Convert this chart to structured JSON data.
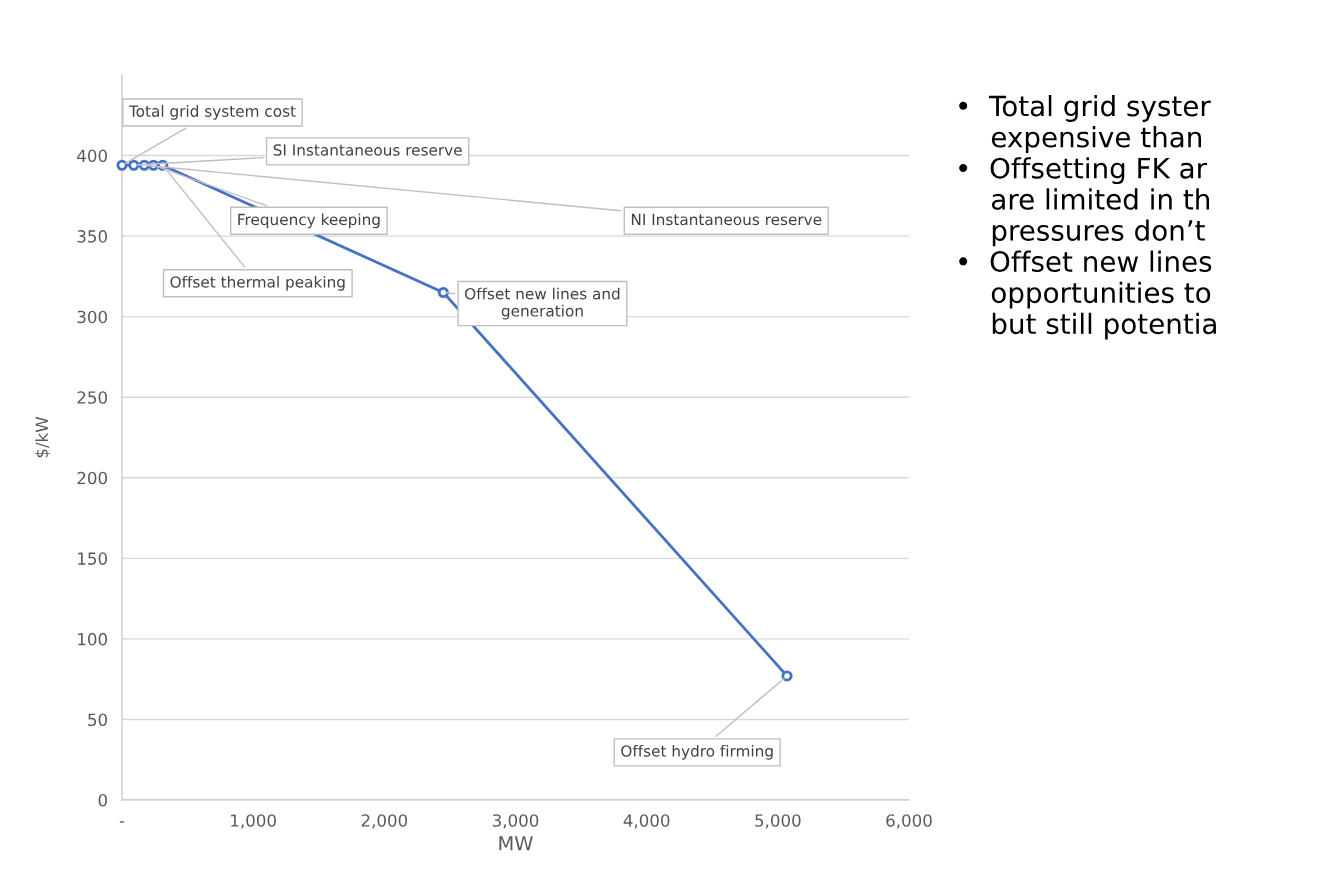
{
  "chart_data": {
    "type": "line",
    "xlabel": "MW",
    "ylabel": "$/kW",
    "x": [
      0,
      90,
      170,
      240,
      310,
      2450,
      5070
    ],
    "series": [
      {
        "color": "#4472c4",
        "values": [
          394,
          394,
          394,
          394,
          394,
          315,
          77
        ]
      }
    ],
    "marker": "circle",
    "line_style": "solid",
    "grid": "y",
    "xlim": [
      0,
      6000
    ],
    "ylim": [
      0,
      450
    ],
    "xticks": [
      {
        "value": 0,
        "label": "-"
      },
      {
        "value": 1000,
        "label": "1,000"
      },
      {
        "value": 2000,
        "label": "2,000"
      },
      {
        "value": 3000,
        "label": "3,000"
      },
      {
        "value": 4000,
        "label": "4,000"
      },
      {
        "value": 5000,
        "label": "5,000"
      },
      {
        "value": 6000,
        "label": "6,000"
      }
    ],
    "yticks": [
      0,
      50,
      100,
      150,
      200,
      250,
      300,
      350,
      400
    ],
    "annotations": [
      {
        "text": "Total grid system cost",
        "x": 0,
        "y": 394
      },
      {
        "text": "SI Instantaneous reserve",
        "x": 90,
        "y": 394
      },
      {
        "text": "NI Instantaneous reserve",
        "x": 170,
        "y": 394
      },
      {
        "text": "Frequency keeping",
        "x": 240,
        "y": 394
      },
      {
        "text": "Offset thermal peaking",
        "x": 310,
        "y": 394
      },
      {
        "text": "Offset new lines and\ngeneration",
        "x": 2450,
        "y": 315
      },
      {
        "text": "Offset hydro firming",
        "x": 5070,
        "y": 77
      },
      "•  Total grid syster\n    expensive than\n•  Offsetting FK ar\n    are limited in th\n    pressures don’t\n•  Offset new lines\n    opportunities to\n    but still potentia"
    ]
  }
}
